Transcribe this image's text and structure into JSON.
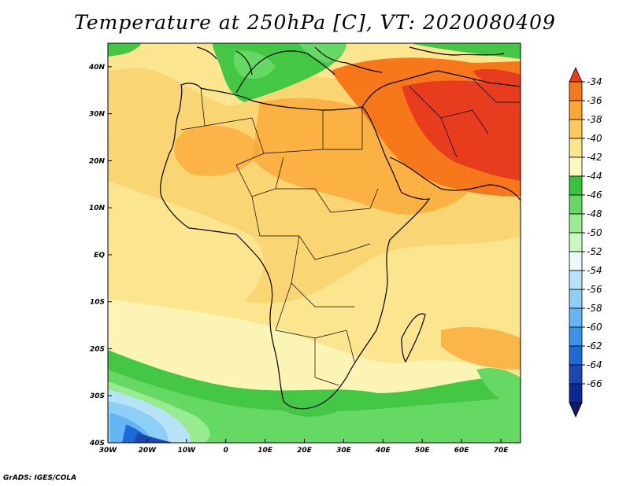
{
  "title": "Temperature at 250hPa [C], VT: 2020080409",
  "footer": "GrADS: IGES/COLA",
  "map": {
    "region": "Africa",
    "variable": "Temperature at 250hPa",
    "units": "C",
    "lon_range": [
      -30,
      75
    ],
    "lat_range": [
      -40,
      45
    ],
    "lon_ticks": [
      {
        "value": -30,
        "label": "30W"
      },
      {
        "value": -20,
        "label": "20W"
      },
      {
        "value": -10,
        "label": "10W"
      },
      {
        "value": 0,
        "label": "0"
      },
      {
        "value": 10,
        "label": "10E"
      },
      {
        "value": 20,
        "label": "20E"
      },
      {
        "value": 30,
        "label": "30E"
      },
      {
        "value": 40,
        "label": "40E"
      },
      {
        "value": 50,
        "label": "50E"
      },
      {
        "value": 60,
        "label": "60E"
      },
      {
        "value": 70,
        "label": "70E"
      }
    ],
    "lat_ticks": [
      {
        "value": 40,
        "label": "40N"
      },
      {
        "value": 30,
        "label": "30N"
      },
      {
        "value": 20,
        "label": "20N"
      },
      {
        "value": 10,
        "label": "10N"
      },
      {
        "value": 0,
        "label": "EQ"
      },
      {
        "value": -10,
        "label": "10S"
      },
      {
        "value": -20,
        "label": "20S"
      },
      {
        "value": -30,
        "label": "30S"
      },
      {
        "value": -40,
        "label": "40S"
      }
    ]
  },
  "colorbar": {
    "labels": [
      "-34",
      "-36",
      "-38",
      "-40",
      "-42",
      "-44",
      "-46",
      "-48",
      "-50",
      "-52",
      "-54",
      "-56",
      "-58",
      "-60",
      "-62",
      "-64",
      "-66"
    ],
    "colors": [
      "#e83c1e",
      "#f7781a",
      "#fba532",
      "#f9c95c",
      "#fbe58f",
      "#fdf8bd",
      "#39c53b",
      "#65d964",
      "#98ec90",
      "#c9f9c0",
      "#eafaf8",
      "#b7e3f9",
      "#8dcff7",
      "#63b5f3",
      "#3a93eb",
      "#1d6ad8",
      "#1848b4",
      "#0b2896",
      "#0e1b6b"
    ]
  },
  "regions": {
    "north_band_color": "#43c745",
    "south_band_color": "#5ac556",
    "deep_south_color": "#1d6ad8"
  }
}
